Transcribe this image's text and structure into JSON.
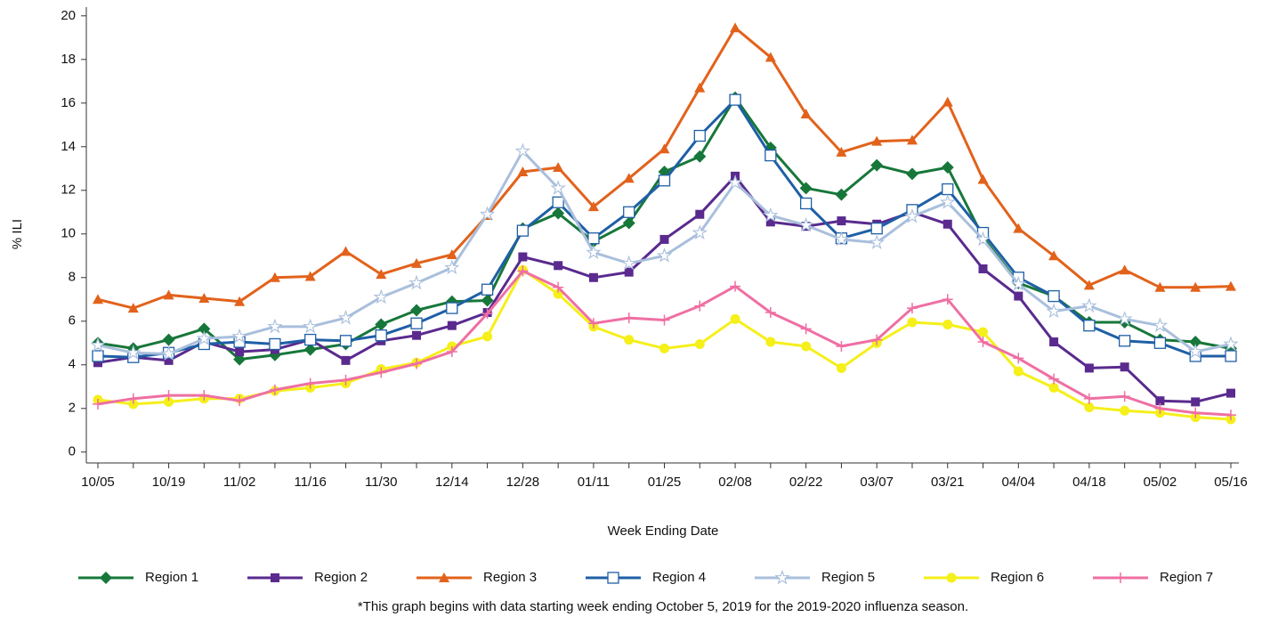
{
  "chart_data": {
    "type": "line",
    "x_label": "Week Ending Date",
    "y_label": "% ILI",
    "footnote": "*This graph begins with data starting week ending October 5, 2019 for the 2019-2020 influenza season.",
    "categories": [
      "10/05",
      null,
      "10/19",
      null,
      "11/02",
      null,
      "11/16",
      null,
      "11/30",
      null,
      "12/14",
      null,
      "12/28",
      null,
      "01/11",
      null,
      "01/25",
      null,
      "02/08",
      null,
      "02/22",
      null,
      "03/07",
      null,
      "03/21",
      null,
      "04/04",
      null,
      "04/18",
      null,
      "05/02",
      null,
      "05/16"
    ],
    "ylim": [
      -0.5,
      20.4
    ],
    "yticks": [
      0,
      2,
      4,
      6,
      8,
      10,
      12,
      14,
      16,
      18,
      20
    ],
    "series": [
      {
        "name": "Region 1",
        "color": "#17773a",
        "marker": "diamond",
        "values": [
          5.0,
          4.75,
          5.15,
          5.65,
          4.25,
          4.45,
          4.7,
          4.95,
          5.85,
          6.5,
          6.9,
          6.95,
          10.25,
          10.95,
          9.65,
          10.5,
          12.85,
          13.55,
          16.25,
          13.95,
          12.1,
          11.8,
          13.15,
          12.75,
          13.05,
          9.85,
          7.75,
          7.15,
          5.95,
          5.95,
          5.15,
          5.05,
          4.75
        ]
      },
      {
        "name": "Region 2",
        "color": "#5a2a8e",
        "marker": "square",
        "values": [
          4.1,
          4.35,
          4.2,
          5.05,
          4.6,
          4.7,
          5.15,
          4.2,
          5.1,
          5.35,
          5.8,
          6.4,
          8.95,
          8.55,
          8.0,
          8.25,
          9.75,
          10.9,
          12.65,
          10.55,
          10.35,
          10.6,
          10.45,
          11.0,
          10.45,
          8.4,
          7.15,
          5.05,
          3.85,
          3.9,
          2.35,
          2.3,
          2.7
        ]
      },
      {
        "name": "Region 3",
        "color": "#e2621b",
        "marker": "triangle",
        "values": [
          7.0,
          6.6,
          7.2,
          7.05,
          6.9,
          8.0,
          8.05,
          9.2,
          8.15,
          8.65,
          9.05,
          10.85,
          12.85,
          13.05,
          11.25,
          12.55,
          13.9,
          16.7,
          19.45,
          18.1,
          15.5,
          13.75,
          14.25,
          14.3,
          16.05,
          12.5,
          10.25,
          9.0,
          7.65,
          8.35,
          7.55,
          7.55,
          7.6
        ]
      },
      {
        "name": "Region 4",
        "color": "#1f5fa6",
        "marker": "open-square",
        "values": [
          4.4,
          4.35,
          4.55,
          4.95,
          5.05,
          4.95,
          5.15,
          5.1,
          5.35,
          5.9,
          6.6,
          7.45,
          10.15,
          11.45,
          9.8,
          11.0,
          12.45,
          14.5,
          16.15,
          13.6,
          11.4,
          9.8,
          10.25,
          11.1,
          12.05,
          10.05,
          8.0,
          7.15,
          5.8,
          5.1,
          5.0,
          4.4,
          4.4
        ]
      },
      {
        "name": "Region 5",
        "color": "#a9bfdc",
        "marker": "open-star",
        "values": [
          4.9,
          4.55,
          4.5,
          5.2,
          5.3,
          5.75,
          5.75,
          6.15,
          7.1,
          7.75,
          8.45,
          10.9,
          13.8,
          12.1,
          9.15,
          8.65,
          9.0,
          10.05,
          12.35,
          10.85,
          10.4,
          9.75,
          9.6,
          10.8,
          11.45,
          9.75,
          7.7,
          6.45,
          6.7,
          6.1,
          5.8,
          4.6,
          4.95
        ]
      },
      {
        "name": "Region 6",
        "color": "#f5ef1a",
        "marker": "circle",
        "values": [
          2.4,
          2.2,
          2.3,
          2.45,
          2.45,
          2.8,
          2.95,
          3.15,
          3.8,
          4.1,
          4.85,
          5.3,
          8.35,
          7.25,
          5.75,
          5.15,
          4.75,
          4.95,
          6.1,
          5.05,
          4.85,
          3.85,
          5.0,
          5.95,
          5.85,
          5.5,
          3.7,
          2.95,
          2.05,
          1.9,
          1.8,
          1.6,
          1.5
        ]
      },
      {
        "name": "Region 7",
        "color": "#ef6fa3",
        "marker": "plus",
        "values": [
          2.2,
          2.45,
          2.6,
          2.6,
          2.35,
          2.85,
          3.15,
          3.3,
          3.65,
          4.05,
          4.6,
          6.35,
          8.3,
          7.55,
          5.9,
          6.15,
          6.05,
          6.7,
          7.6,
          6.4,
          5.65,
          4.85,
          5.15,
          6.6,
          7.0,
          5.05,
          4.3,
          3.35,
          2.45,
          2.55,
          2.0,
          1.8,
          1.7
        ]
      }
    ]
  }
}
